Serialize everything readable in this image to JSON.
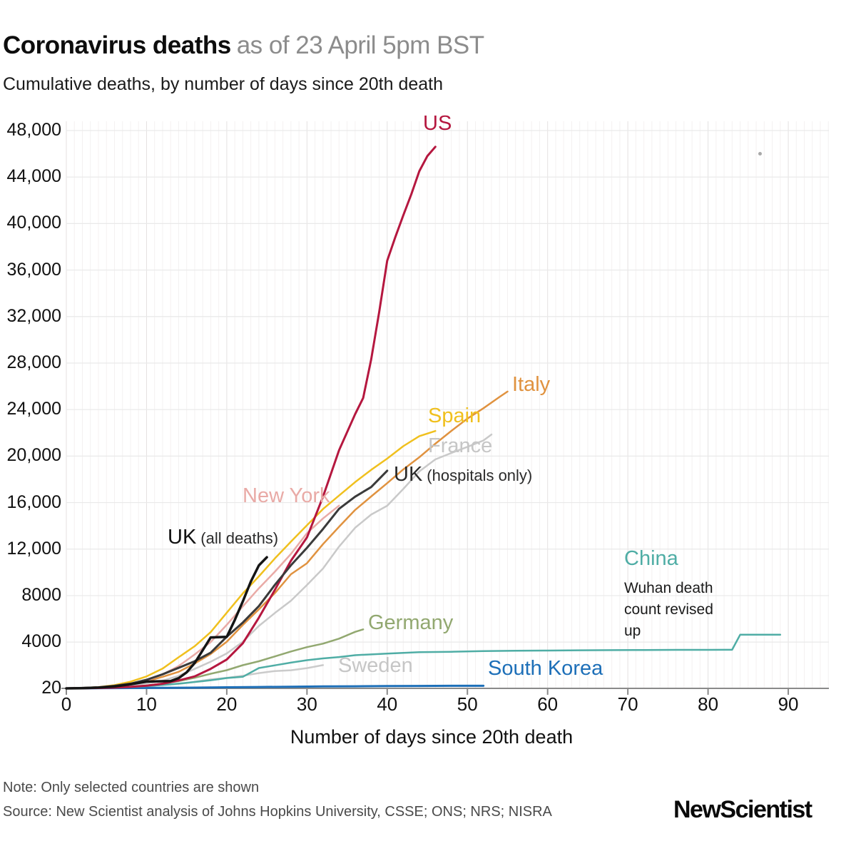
{
  "header": {
    "title": "Coronavirus deaths",
    "title_date": "as of 23 April 5pm BST",
    "subtitle": "Cumulative deaths, by number of days since 20th death"
  },
  "chart_data": {
    "type": "line",
    "title": "Coronavirus deaths as of 23 April 5pm BST",
    "subtitle": "Cumulative deaths, by number of days since 20th death",
    "xlabel": "Number of days since 20th death",
    "ylabel": "Cumulative deaths",
    "xlim": [
      0,
      95
    ],
    "ylim": [
      20,
      48000
    ],
    "grid": "both",
    "legend_position": "inline-labels",
    "x_ticks": [
      {
        "v": 0,
        "label": "0"
      },
      {
        "v": 10,
        "label": "10"
      },
      {
        "v": 20,
        "label": "20"
      },
      {
        "v": 30,
        "label": "30"
      },
      {
        "v": 40,
        "label": "40"
      },
      {
        "v": 50,
        "label": "50"
      },
      {
        "v": 60,
        "label": "60"
      },
      {
        "v": 70,
        "label": "70"
      },
      {
        "v": 80,
        "label": "80"
      },
      {
        "v": 90,
        "label": "90"
      }
    ],
    "y_ticks": [
      {
        "v": 20,
        "label": "20"
      },
      {
        "v": 4000,
        "label": "4000"
      },
      {
        "v": 8000,
        "label": "8000"
      },
      {
        "v": 12000,
        "label": "12,000"
      },
      {
        "v": 16000,
        "label": "16,000"
      },
      {
        "v": 20000,
        "label": "20,000"
      },
      {
        "v": 24000,
        "label": "24,000"
      },
      {
        "v": 28000,
        "label": "28,000"
      },
      {
        "v": 32000,
        "label": "32,000"
      },
      {
        "v": 36000,
        "label": "36,000"
      },
      {
        "v": 40000,
        "label": "40,000"
      },
      {
        "v": 44000,
        "label": "44,000"
      },
      {
        "v": 48000,
        "label": "48,000"
      }
    ],
    "series": [
      {
        "id": "sweden",
        "name": "Sweden",
        "color": "#cbcbcb",
        "width": 2.5,
        "points": [
          [
            0,
            21
          ],
          [
            2,
            36
          ],
          [
            4,
            62
          ],
          [
            6,
            105
          ],
          [
            8,
            146
          ],
          [
            10,
            239
          ],
          [
            12,
            333
          ],
          [
            14,
            401
          ],
          [
            16,
            591
          ],
          [
            18,
            793
          ],
          [
            20,
            919
          ],
          [
            22,
            1103
          ],
          [
            24,
            1333
          ],
          [
            26,
            1511
          ],
          [
            28,
            1580
          ],
          [
            30,
            1765
          ],
          [
            32,
            2021
          ]
        ]
      },
      {
        "id": "south_korea",
        "name": "South Korea",
        "color": "#1d6fb8",
        "width": 3,
        "points": [
          [
            0,
            22
          ],
          [
            4,
            35
          ],
          [
            8,
            50
          ],
          [
            12,
            66
          ],
          [
            16,
            81
          ],
          [
            20,
            111
          ],
          [
            24,
            139
          ],
          [
            28,
            162
          ],
          [
            32,
            183
          ],
          [
            36,
            200
          ],
          [
            40,
            217
          ],
          [
            44,
            229
          ],
          [
            48,
            238
          ],
          [
            52,
            240
          ]
        ]
      },
      {
        "id": "china",
        "name": "China",
        "color": "#4fada5",
        "width": 2.5,
        "points": [
          [
            0,
            25
          ],
          [
            2,
            41
          ],
          [
            4,
            56
          ],
          [
            6,
            80
          ],
          [
            8,
            132
          ],
          [
            9,
            170
          ],
          [
            11,
            259
          ],
          [
            13,
            361
          ],
          [
            15,
            490
          ],
          [
            17,
            637
          ],
          [
            18,
            722
          ],
          [
            19,
            811
          ],
          [
            20,
            908
          ],
          [
            22,
            1016
          ],
          [
            24,
            1770
          ],
          [
            26,
            2004
          ],
          [
            28,
            2238
          ],
          [
            30,
            2445
          ],
          [
            32,
            2595
          ],
          [
            34,
            2715
          ],
          [
            36,
            2871
          ],
          [
            40,
            3013
          ],
          [
            44,
            3130
          ],
          [
            48,
            3169
          ],
          [
            52,
            3230
          ],
          [
            56,
            3255
          ],
          [
            60,
            3274
          ],
          [
            64,
            3295
          ],
          [
            68,
            3310
          ],
          [
            72,
            3322
          ],
          [
            76,
            3331
          ],
          [
            80,
            3335
          ],
          [
            83,
            3342
          ],
          [
            84,
            4632
          ],
          [
            89,
            4636
          ]
        ]
      },
      {
        "id": "germany",
        "name": "Germany",
        "color": "#92a870",
        "width": 2.5,
        "points": [
          [
            0,
            28
          ],
          [
            2,
            44
          ],
          [
            4,
            67
          ],
          [
            6,
            123
          ],
          [
            8,
            157
          ],
          [
            10,
            267
          ],
          [
            12,
            433
          ],
          [
            14,
            645
          ],
          [
            16,
            931
          ],
          [
            18,
            1275
          ],
          [
            20,
            1584
          ],
          [
            22,
            2016
          ],
          [
            24,
            2349
          ],
          [
            26,
            2767
          ],
          [
            28,
            3194
          ],
          [
            30,
            3569
          ],
          [
            32,
            3868
          ],
          [
            34,
            4294
          ],
          [
            36,
            4879
          ],
          [
            37,
            5094
          ]
        ]
      },
      {
        "id": "france",
        "name": "France",
        "color": "#c9c9c9",
        "width": 2.5,
        "points": [
          [
            0,
            30
          ],
          [
            2,
            48
          ],
          [
            4,
            91
          ],
          [
            6,
            148
          ],
          [
            8,
            244
          ],
          [
            10,
            450
          ],
          [
            12,
            674
          ],
          [
            14,
            1100
          ],
          [
            16,
            1696
          ],
          [
            18,
            2314
          ],
          [
            20,
            3024
          ],
          [
            22,
            4032
          ],
          [
            24,
            5387
          ],
          [
            26,
            6507
          ],
          [
            28,
            7560
          ],
          [
            30,
            8911
          ],
          [
            32,
            10328
          ],
          [
            34,
            12210
          ],
          [
            36,
            13832
          ],
          [
            38,
            14967
          ],
          [
            40,
            15729
          ],
          [
            42,
            17167
          ],
          [
            44,
            18681
          ],
          [
            46,
            19718
          ],
          [
            48,
            20265
          ],
          [
            50,
            20796
          ],
          [
            52,
            21340
          ],
          [
            53,
            21856
          ]
        ]
      },
      {
        "id": "italy",
        "name": "Italy",
        "color": "#e0923f",
        "width": 2.5,
        "points": [
          [
            0,
            21
          ],
          [
            2,
            52
          ],
          [
            4,
            107
          ],
          [
            6,
            233
          ],
          [
            8,
            366
          ],
          [
            10,
            631
          ],
          [
            12,
            1016
          ],
          [
            14,
            1441
          ],
          [
            16,
            2158
          ],
          [
            18,
            2978
          ],
          [
            20,
            4032
          ],
          [
            22,
            5476
          ],
          [
            24,
            6820
          ],
          [
            26,
            8215
          ],
          [
            28,
            9837
          ],
          [
            30,
            10779
          ],
          [
            32,
            12428
          ],
          [
            34,
            13915
          ],
          [
            36,
            15362
          ],
          [
            38,
            16523
          ],
          [
            40,
            17669
          ],
          [
            42,
            18849
          ],
          [
            44,
            19899
          ],
          [
            46,
            21067
          ],
          [
            48,
            22170
          ],
          [
            50,
            23227
          ],
          [
            52,
            24114
          ],
          [
            54,
            25085
          ],
          [
            55,
            25549
          ]
        ]
      },
      {
        "id": "spain",
        "name": "Spain",
        "color": "#f0c01e",
        "width": 2.5,
        "points": [
          [
            0,
            28
          ],
          [
            2,
            54
          ],
          [
            4,
            133
          ],
          [
            6,
            294
          ],
          [
            8,
            598
          ],
          [
            10,
            1045
          ],
          [
            12,
            1720
          ],
          [
            14,
            2696
          ],
          [
            16,
            3647
          ],
          [
            18,
            4858
          ],
          [
            20,
            6528
          ],
          [
            22,
            8189
          ],
          [
            24,
            9653
          ],
          [
            26,
            11198
          ],
          [
            28,
            12641
          ],
          [
            30,
            14045
          ],
          [
            32,
            15447
          ],
          [
            34,
            16606
          ],
          [
            36,
            17756
          ],
          [
            38,
            18812
          ],
          [
            40,
            19781
          ],
          [
            42,
            20852
          ],
          [
            44,
            21717
          ],
          [
            46,
            22157
          ]
        ]
      },
      {
        "id": "new_york",
        "name": "New York",
        "color": "#e9aaa6",
        "width": 2.5,
        "points": [
          [
            0,
            29
          ],
          [
            2,
            60
          ],
          [
            4,
            117
          ],
          [
            6,
            218
          ],
          [
            8,
            385
          ],
          [
            10,
            678
          ],
          [
            12,
            1218
          ],
          [
            14,
            1941
          ],
          [
            16,
            2935
          ],
          [
            18,
            4009
          ],
          [
            20,
            5489
          ],
          [
            22,
            7067
          ],
          [
            24,
            8627
          ],
          [
            26,
            10056
          ],
          [
            28,
            11586
          ],
          [
            30,
            13362
          ],
          [
            32,
            14636
          ],
          [
            34,
            15740
          ]
        ]
      },
      {
        "id": "us",
        "name": "US",
        "color": "#b5173f",
        "width": 3,
        "points": [
          [
            0,
            22
          ],
          [
            2,
            30
          ],
          [
            4,
            49
          ],
          [
            6,
            85
          ],
          [
            8,
            150
          ],
          [
            10,
            250
          ],
          [
            12,
            420
          ],
          [
            14,
            700
          ],
          [
            16,
            1050
          ],
          [
            18,
            1700
          ],
          [
            20,
            2500
          ],
          [
            22,
            3900
          ],
          [
            24,
            6100
          ],
          [
            26,
            8500
          ],
          [
            28,
            11000
          ],
          [
            30,
            13000
          ],
          [
            32,
            16500
          ],
          [
            34,
            20500
          ],
          [
            36,
            23600
          ],
          [
            37,
            25000
          ],
          [
            38,
            28300
          ],
          [
            39,
            32400
          ],
          [
            40,
            36800
          ],
          [
            41,
            38800
          ],
          [
            42,
            40700
          ],
          [
            43,
            42500
          ],
          [
            44,
            44500
          ],
          [
            45,
            45800
          ],
          [
            46,
            46600
          ]
        ]
      },
      {
        "id": "uk_hospitals",
        "name": "UK (hospitals only)",
        "color": "#3a3a3a",
        "width": 3,
        "points": [
          [
            0,
            21
          ],
          [
            2,
            56
          ],
          [
            4,
            104
          ],
          [
            6,
            233
          ],
          [
            8,
            422
          ],
          [
            10,
            759
          ],
          [
            12,
            1228
          ],
          [
            14,
            1789
          ],
          [
            16,
            2352
          ],
          [
            18,
            3095
          ],
          [
            20,
            4461
          ],
          [
            22,
            5683
          ],
          [
            24,
            7095
          ],
          [
            26,
            8931
          ],
          [
            28,
            10612
          ],
          [
            30,
            12107
          ],
          [
            32,
            13729
          ],
          [
            34,
            15464
          ],
          [
            36,
            16509
          ],
          [
            38,
            17337
          ],
          [
            40,
            18738
          ]
        ]
      },
      {
        "id": "uk_all",
        "name": "UK (all deaths)",
        "color": "#141414",
        "width": 3.5,
        "points": [
          [
            0,
            20
          ],
          [
            2,
            40
          ],
          [
            4,
            85
          ],
          [
            6,
            180
          ],
          [
            8,
            370
          ],
          [
            10,
            600
          ],
          [
            11,
            620
          ],
          [
            13,
            645
          ],
          [
            14,
            900
          ],
          [
            15,
            1400
          ],
          [
            16,
            2200
          ],
          [
            17,
            3300
          ],
          [
            18,
            4400
          ],
          [
            20,
            4450
          ],
          [
            21,
            5900
          ],
          [
            22,
            7500
          ],
          [
            23,
            9200
          ],
          [
            24,
            10600
          ],
          [
            25,
            11300
          ]
        ]
      }
    ]
  },
  "labels": {
    "us": {
      "text": "US",
      "color": "#b5173f"
    },
    "italy": {
      "text": "Italy",
      "color": "#e0923f"
    },
    "spain": {
      "text": "Spain",
      "color": "#f0c01e"
    },
    "france": {
      "text": "France",
      "color": "#c6c6c6"
    },
    "uk_hospitals": {
      "text": "UK",
      "suffix": "(hospitals only)",
      "color": "#2b2b2b"
    },
    "new_york": {
      "text": "New York",
      "color": "#e9aaa6"
    },
    "uk_all": {
      "text": "UK",
      "suffix": "(all deaths)",
      "color": "#111111"
    },
    "china": {
      "text": "China",
      "color": "#4fada5"
    },
    "china_note": {
      "text": "Wuhan death count revised up"
    },
    "germany": {
      "text": "Germany",
      "color": "#92a870"
    },
    "sweden": {
      "text": "Sweden",
      "color": "#c6c6c6"
    },
    "south_korea": {
      "text": "South Korea",
      "color": "#1d6fb8"
    }
  },
  "footer": {
    "note": "Note: Only selected countries are shown",
    "source": "Source: New Scientist analysis of Johns Hopkins University, CSSE; ONS; NRS; NISRA",
    "logo": "NewScientist"
  }
}
